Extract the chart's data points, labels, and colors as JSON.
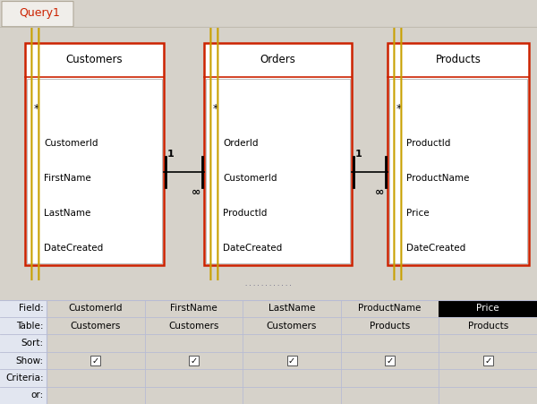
{
  "bg_color": "#d6d2ca",
  "diagram_bg": "#e8edf2",
  "tab_label": "Query1",
  "tab_text_color": "#cc2200",
  "tables": [
    {
      "name": "Customers",
      "fields": [
        "*",
        "CustomerId",
        "FirstName",
        "LastName",
        "DateCreated"
      ],
      "pk_field": "CustomerId"
    },
    {
      "name": "Orders",
      "fields": [
        "*",
        "OrderId",
        "CustomerId",
        "ProductId",
        "DateCreated"
      ],
      "pk_field": "OrderId"
    },
    {
      "name": "Products",
      "fields": [
        "*",
        "ProductId",
        "ProductName",
        "Price",
        "DateCreated"
      ],
      "pk_field": "ProductId"
    }
  ],
  "table_border_color": "#cc2200",
  "table_inner_border": "#bbbbbb",
  "key_color": "#c8a000",
  "grid_rows": [
    "Field:",
    "Table:",
    "Sort:",
    "Show:",
    "Criteria:",
    "or:"
  ],
  "grid_cols": [
    "CustomerId",
    "FirstName",
    "LastName",
    "ProductName",
    "Price"
  ],
  "grid_table": [
    "Customers",
    "Customers",
    "Customers",
    "Products",
    "Products"
  ],
  "grid_show": [
    true,
    true,
    true,
    true,
    true
  ],
  "price_highlight": true,
  "grid_bg": "#eef0f7",
  "grid_line_color": "#b8bcd4",
  "grid_label_bg": "#e2e6f0",
  "sep_color": "#7878a0",
  "sep_dots_color": "#555577"
}
